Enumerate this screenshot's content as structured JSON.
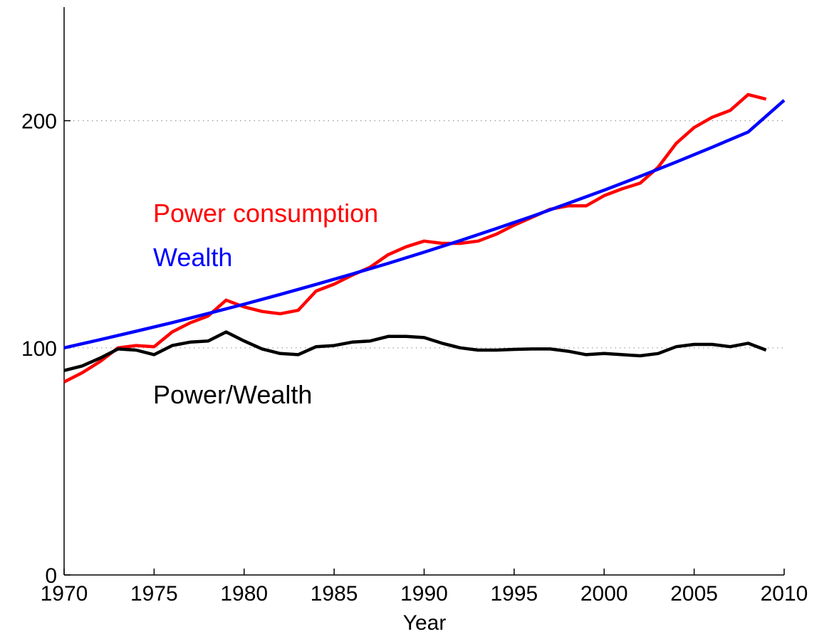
{
  "chart_data": {
    "type": "line",
    "title": "",
    "xlabel": "Year",
    "ylabel": "",
    "xlim": [
      1970,
      2010
    ],
    "ylim": [
      0,
      250
    ],
    "xticks": [
      "1970",
      "1975",
      "1980",
      "1985",
      "1990",
      "1995",
      "2000",
      "2005",
      "2010"
    ],
    "yticks": [
      "0",
      "100",
      "200"
    ],
    "grid": "dotted horizontal at 100 and 200",
    "series": [
      {
        "name": "Power consumption",
        "color": "#ff0000",
        "x": [
          1970,
          1971,
          1972,
          1973,
          1974,
          1975,
          1976,
          1977,
          1978,
          1979,
          1980,
          1981,
          1982,
          1983,
          1984,
          1985,
          1986,
          1987,
          1988,
          1989,
          1990,
          1991,
          1992,
          1993,
          1994,
          1995,
          1996,
          1997,
          1998,
          1999,
          2000,
          2001,
          2002,
          2003,
          2004,
          2005,
          2006,
          2007,
          2008,
          2009
        ],
        "y": [
          85,
          89,
          94,
          100,
          101,
          100.5,
          107,
          111,
          114,
          121,
          118,
          116,
          115,
          116.5,
          125,
          128,
          132,
          135.5,
          141,
          144.5,
          147,
          146,
          146,
          147,
          150,
          154,
          157.5,
          161,
          162.5,
          162.5,
          167,
          170,
          172.5,
          179.5,
          190,
          197,
          201.5,
          204.5,
          211.5,
          209.5
        ]
      },
      {
        "name": "Wealth",
        "color": "#0000ff",
        "x": [
          1970,
          1972,
          1974,
          1976,
          1978,
          1980,
          1982,
          1984,
          1986,
          1988,
          1990,
          1992,
          1994,
          1996,
          1998,
          2000,
          2002,
          2004,
          2006,
          2008,
          2010
        ],
        "y": [
          100,
          103.6,
          107.3,
          111.1,
          115.1,
          119.2,
          123.5,
          127.9,
          132.5,
          137.2,
          142.1,
          147.2,
          152.5,
          157.9,
          163.6,
          169.4,
          175.5,
          181.8,
          188.3,
          195.0,
          209.0
        ]
      },
      {
        "name": "Power/Wealth",
        "color": "#000000",
        "x": [
          1970,
          1971,
          1972,
          1973,
          1974,
          1975,
          1976,
          1977,
          1978,
          1979,
          1980,
          1981,
          1982,
          1983,
          1984,
          1985,
          1986,
          1987,
          1988,
          1989,
          1990,
          1991,
          1992,
          1993,
          1994,
          1995,
          1996,
          1997,
          1998,
          1999,
          2000,
          2001,
          2002,
          2003,
          2004,
          2005,
          2006,
          2007,
          2008,
          2009
        ],
        "y": [
          90,
          92,
          95.5,
          99.5,
          99,
          97,
          101,
          102.5,
          103,
          107,
          103,
          99.5,
          97.5,
          97,
          100.5,
          101,
          102.5,
          103,
          105,
          105,
          104.5,
          102,
          100,
          99,
          99,
          99.3,
          99.5,
          99.5,
          98.5,
          97,
          97.5,
          97,
          96.5,
          97.5,
          100.5,
          101.5,
          101.5,
          100.5,
          102,
          99
        ]
      }
    ]
  }
}
